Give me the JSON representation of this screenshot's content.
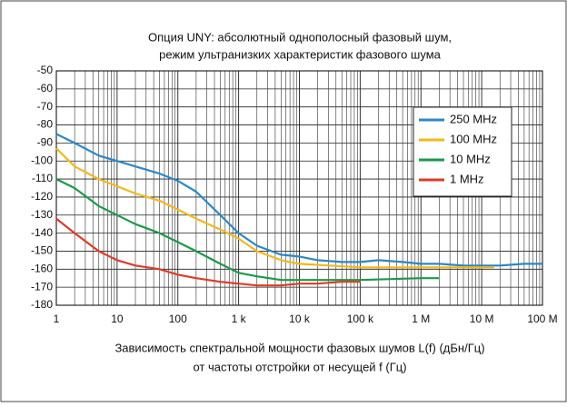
{
  "chart_data": {
    "type": "line",
    "title": [
      "Опция UNY: абсолютный однополосный фазовый шум,",
      "режим ультранизких характеристик фазового шума"
    ],
    "x_label": [
      "Зависимость спектральной мощности фазовых шумов L(f) (дБн/Гц)",
      "от частоты отстройки от несущей f (Гц)"
    ],
    "xscale": "log",
    "xlim": [
      1,
      100000000
    ],
    "ylim": [
      -180,
      -50
    ],
    "xticks": [
      1,
      10,
      100,
      {
        "value": 1000,
        "label": "1 k"
      },
      {
        "value": 10000,
        "label": "10 k"
      },
      {
        "value": 100000,
        "label": "100 k"
      },
      {
        "value": 1000000,
        "label": "1 M"
      },
      {
        "value": 10000000,
        "label": "10 M"
      },
      {
        "value": 100000000,
        "label": "100 M"
      }
    ],
    "yticks": [
      -50,
      -60,
      -70,
      -80,
      -90,
      -100,
      -110,
      -120,
      -130,
      -140,
      -150,
      -160,
      -170,
      -180
    ],
    "grid": true,
    "minor_grid": true,
    "legend": "upper right",
    "series": [
      {
        "name": "250 MHz",
        "color": "#2b87c8",
        "x": [
          1,
          2,
          5,
          10,
          20,
          50,
          100,
          200,
          500,
          1000,
          2000,
          5000,
          10000,
          20000,
          50000,
          100000,
          200000,
          500000,
          1000000,
          2000000,
          5000000,
          10000000,
          20000000,
          50000000,
          100000000
        ],
        "values": [
          -85,
          -90,
          -97,
          -100,
          -103,
          -107,
          -111,
          -117,
          -130,
          -140,
          -147,
          -152,
          -153,
          -155,
          -156,
          -156,
          -155,
          -156,
          -157,
          -157,
          -158,
          -158,
          -158,
          -157,
          -157
        ]
      },
      {
        "name": "100 MHz",
        "color": "#f5b719",
        "x": [
          1,
          2,
          5,
          10,
          20,
          50,
          100,
          200,
          500,
          1000,
          2000,
          5000,
          10000,
          100000,
          1000000,
          10000000,
          16000000
        ],
        "values": [
          -93,
          -103,
          -110,
          -114,
          -118,
          -122,
          -127,
          -132,
          -138,
          -143,
          -150,
          -155,
          -157,
          -159,
          -159,
          -159,
          -159
        ]
      },
      {
        "name": "10 MHz",
        "color": "#1a9a48",
        "x": [
          1,
          2,
          5,
          10,
          20,
          50,
          100,
          200,
          500,
          1000,
          2000,
          5000,
          10000,
          100000,
          1000000,
          2000000
        ],
        "values": [
          -110,
          -115,
          -125,
          -130,
          -135,
          -140,
          -145,
          -150,
          -157,
          -162,
          -164,
          -166,
          -166,
          -166,
          -165,
          -165
        ]
      },
      {
        "name": "1 MHz",
        "color": "#e03a26",
        "x": [
          1,
          2,
          5,
          10,
          20,
          50,
          100,
          200,
          500,
          1000,
          2000,
          5000,
          10000,
          20000,
          50000,
          100000
        ],
        "values": [
          -132,
          -140,
          -150,
          -155,
          -158,
          -160,
          -163,
          -165,
          -167,
          -168,
          -169,
          -169,
          -168,
          -168,
          -167,
          -167
        ]
      }
    ]
  }
}
